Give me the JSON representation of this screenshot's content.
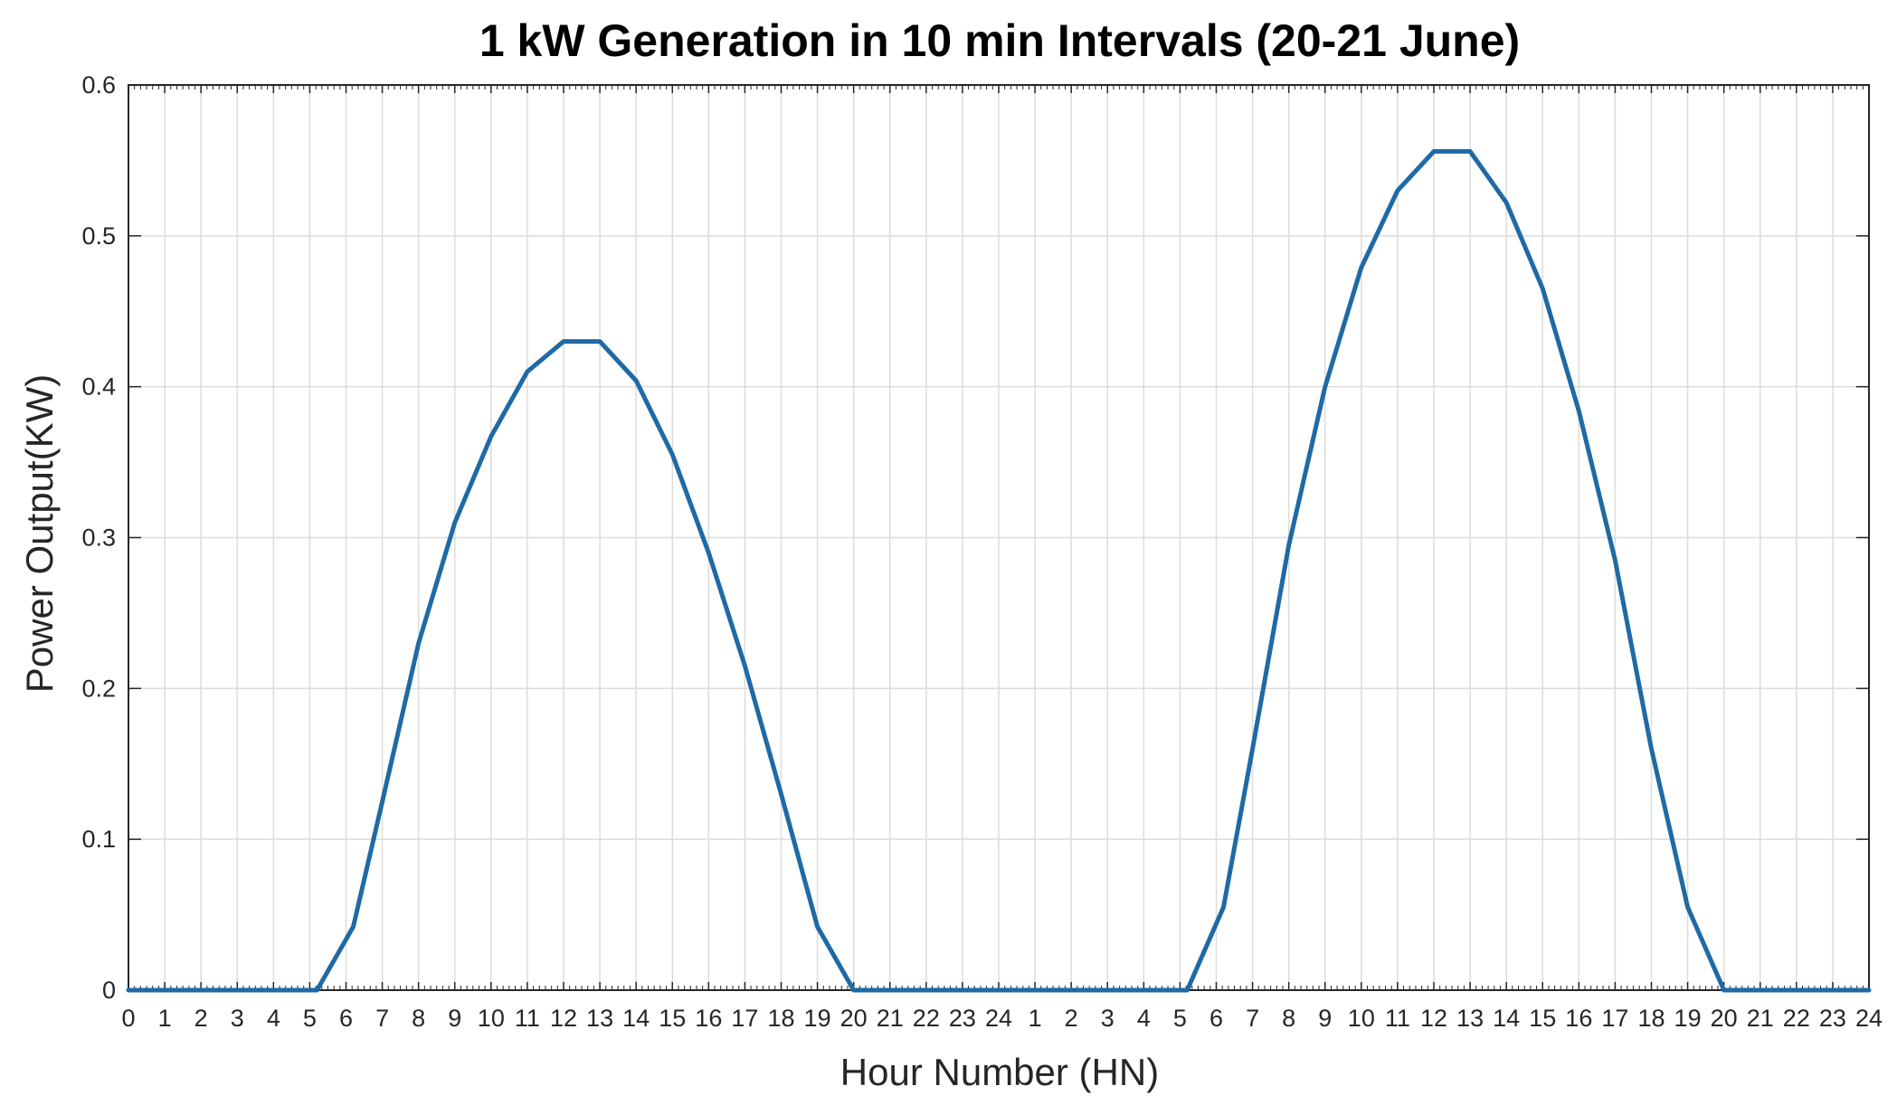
{
  "chart_data": {
    "type": "line",
    "title": "1 kW Generation in 10 min Intervals (20-21 June)",
    "xlabel": "Hour Number (HN)",
    "ylabel": "Power Output(KW)",
    "xlim": [
      0,
      48
    ],
    "ylim": [
      0,
      0.6
    ],
    "grid": true,
    "x_tick_labels": [
      "0",
      "1",
      "2",
      "3",
      "4",
      "5",
      "6",
      "7",
      "8",
      "9",
      "10",
      "11",
      "12",
      "13",
      "14",
      "15",
      "16",
      "17",
      "18",
      "19",
      "20",
      "21",
      "22",
      "23",
      "24",
      "1",
      "2",
      "3",
      "4",
      "5",
      "6",
      "7",
      "8",
      "9",
      "10",
      "11",
      "12",
      "13",
      "14",
      "15",
      "16",
      "17",
      "18",
      "19",
      "20",
      "21",
      "22",
      "23",
      "24"
    ],
    "y_ticks": [
      0,
      0.1,
      0.2,
      0.3,
      0.4,
      0.5,
      0.6
    ],
    "y_tick_labels": [
      "0",
      "0.1",
      "0.2",
      "0.3",
      "0.4",
      "0.5",
      "0.6"
    ],
    "series": [
      {
        "name": "Power Output",
        "color": "#1f6aa5",
        "x": [
          0,
          5.2,
          6.2,
          7,
          8,
          9,
          10,
          11,
          12,
          13,
          14,
          15,
          16,
          17,
          18,
          19,
          20,
          24,
          29.2,
          30.2,
          31,
          32,
          33,
          34,
          35,
          36,
          37,
          38,
          39,
          40,
          41,
          42,
          43,
          44,
          48
        ],
        "y": [
          0,
          0,
          0.042,
          0.125,
          0.23,
          0.31,
          0.367,
          0.41,
          0.43,
          0.43,
          0.404,
          0.355,
          0.29,
          0.215,
          0.13,
          0.042,
          0,
          0,
          0,
          0.055,
          0.16,
          0.295,
          0.4,
          0.479,
          0.53,
          0.556,
          0.556,
          0.522,
          0.465,
          0.384,
          0.285,
          0.16,
          0.055,
          0,
          0
        ]
      }
    ]
  }
}
